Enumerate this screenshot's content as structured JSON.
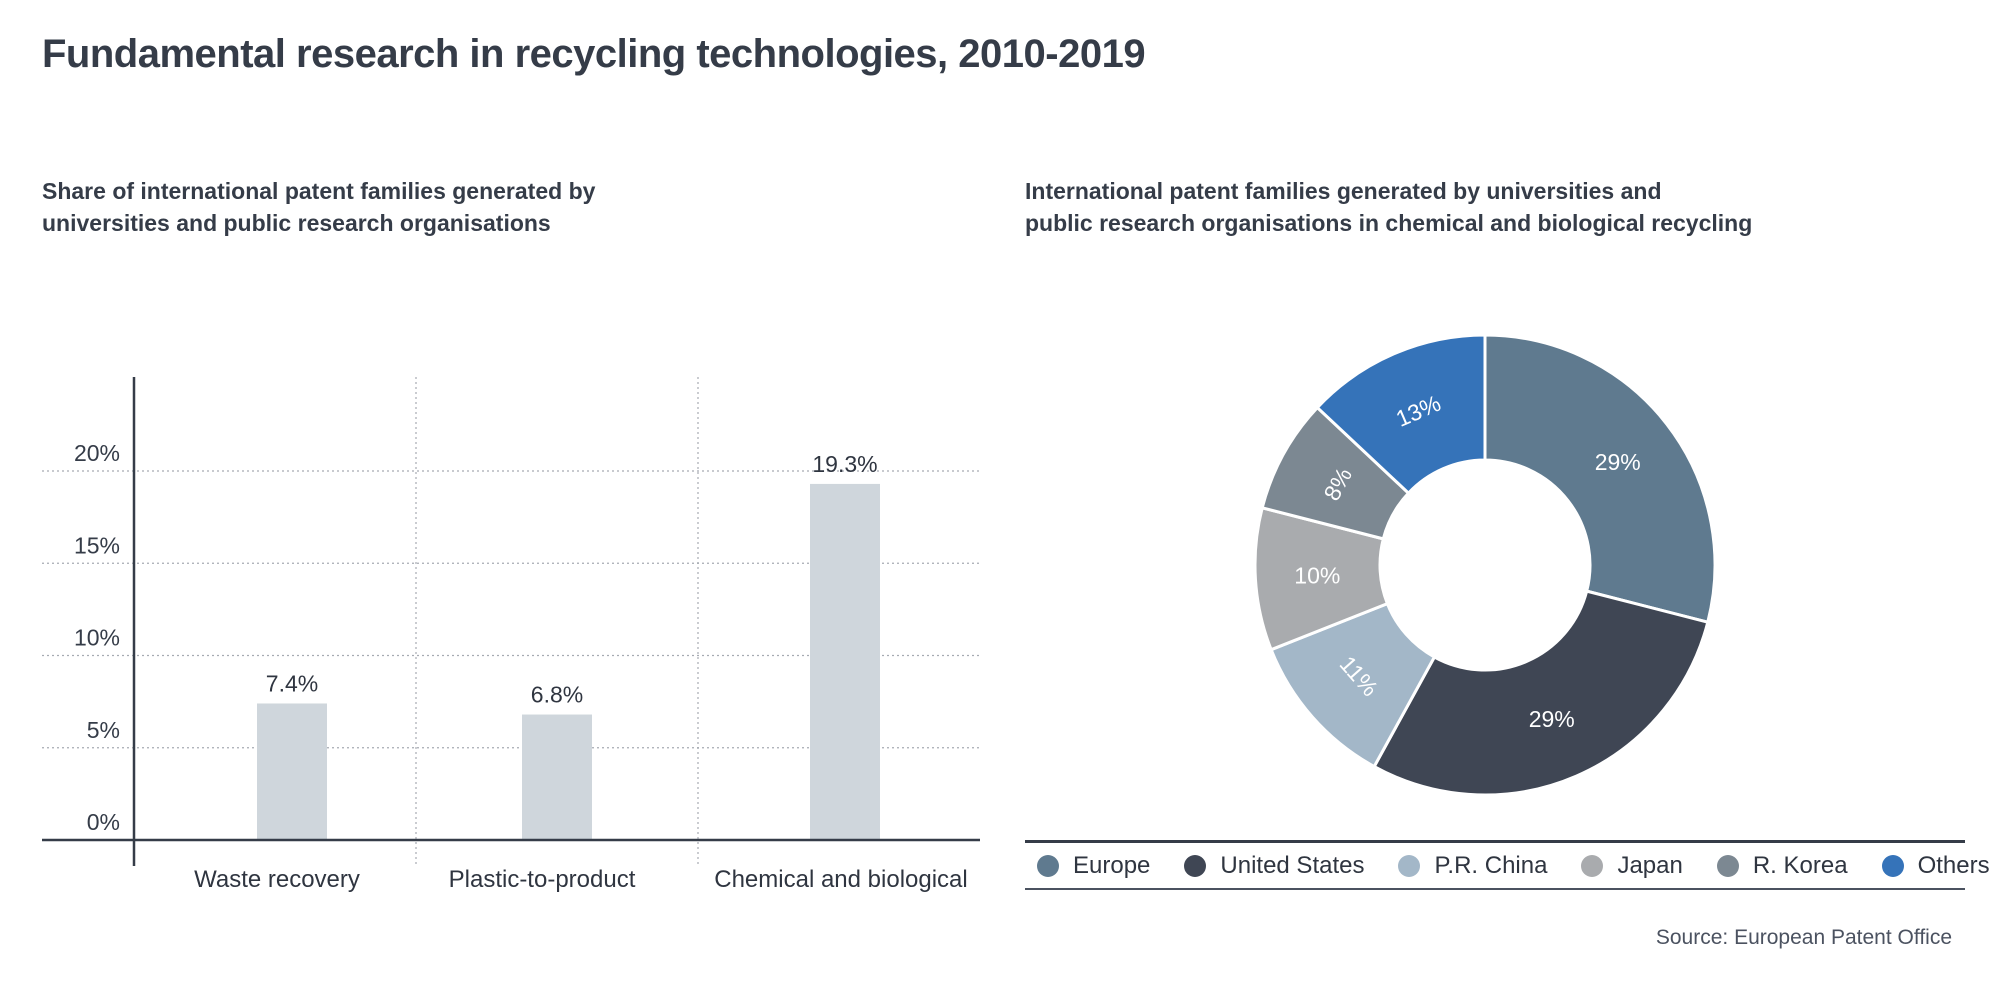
{
  "title": "Fundamental research in recycling technologies, 2010-2019",
  "source": "Source: European Patent Office",
  "chart_data": [
    {
      "type": "bar",
      "title_lines": [
        "Share of international patent families generated by",
        "universities and public research organisations"
      ],
      "categories": [
        "Waste recovery",
        "Plastic-to-product",
        "Chemical and biological"
      ],
      "values": [
        7.4,
        6.8,
        19.3
      ],
      "value_labels": [
        "7.4%",
        "6.8%",
        "19.3%"
      ],
      "yticks": [
        0,
        5,
        10,
        15,
        20
      ],
      "ytick_labels": [
        "0%",
        "5%",
        "10%",
        "15%",
        "20%"
      ],
      "ylim": [
        0,
        25
      ],
      "grid": true,
      "bar_color": "#cfd6dc"
    },
    {
      "type": "pie",
      "donut": true,
      "title_lines": [
        "International patent families generated by universities and",
        "public research organisations in chemical and biological recycling"
      ],
      "slices": [
        {
          "label": "Europe",
          "value": 29,
          "value_label": "29%",
          "color": "#5f7a8f",
          "text_color": "#ffffff"
        },
        {
          "label": "United States",
          "value": 29,
          "value_label": "29%",
          "color": "#3f4654",
          "text_color": "#ffffff"
        },
        {
          "label": "P.R. China",
          "value": 11,
          "value_label": "11%",
          "color": "#a3b7c8",
          "text_color": "#ffffff"
        },
        {
          "label": "Japan",
          "value": 10,
          "value_label": "10%",
          "color": "#a9abae",
          "text_color": "#ffffff"
        },
        {
          "label": "R. Korea",
          "value": 8,
          "value_label": "8%",
          "color": "#7c8892",
          "text_color": "#ffffff"
        },
        {
          "label": "Others",
          "value": 13,
          "value_label": "13%",
          "color": "#3573b9",
          "text_color": "#ffffff"
        }
      ],
      "legend_position": "bottom"
    }
  ]
}
